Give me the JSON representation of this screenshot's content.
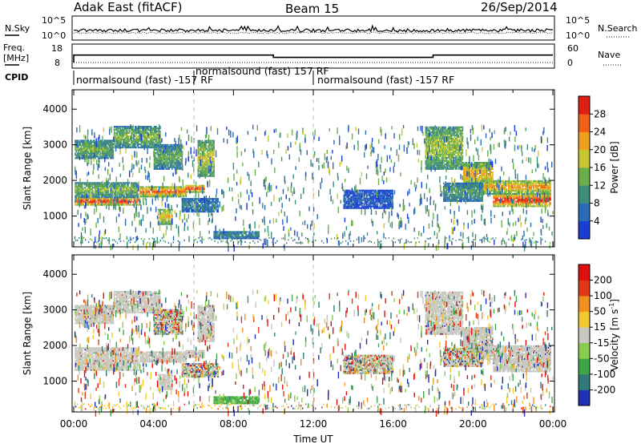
{
  "header": {
    "radar": "Adak East (fitACF)",
    "beam": "Beam 15",
    "date": "26/Sep/2014"
  },
  "ancillary": {
    "nsky_label": "N.Sky",
    "nsearch_label": "N.Search",
    "noise_ticks": [
      "10^5",
      "10^0"
    ],
    "freq_label": "Freq.",
    "freq_unit": "[MHz]",
    "freq_ticks": [
      "18",
      "8"
    ],
    "nave_label": "Nave",
    "nave_ticks": [
      "60",
      "0"
    ],
    "cpid_label": "CPID",
    "cpid_segments": [
      {
        "start_hour": 0,
        "end_hour": 6,
        "label": "normalsound (fast) -157 RF"
      },
      {
        "start_hour": 6,
        "end_hour": 12,
        "label": "normalsound (fast) 157 RF"
      },
      {
        "start_hour": 12,
        "end_hour": 24,
        "label": "normalsound (fast) -157 RF"
      }
    ],
    "freq_mhz": [
      {
        "start_hour": 0,
        "end_hour": 10,
        "value": 14.5
      },
      {
        "start_hour": 10,
        "end_hour": 18,
        "value": 13.2
      },
      {
        "start_hour": 18,
        "end_hour": 24,
        "value": 14.5
      }
    ]
  },
  "chart_data": [
    {
      "type": "heatmap",
      "panel": "power",
      "ylabel": "Slant Range [km]",
      "xlabel": "",
      "xlim_hours": [
        0,
        24
      ],
      "ylim": [
        180,
        4500
      ],
      "yticks": [
        1000,
        2000,
        3000,
        4000
      ],
      "colorbar_label": "Power [dB]",
      "colorbar_ticks": [
        "4",
        "8",
        "12",
        "16",
        "20",
        "24",
        "28"
      ],
      "colorbar_range": [
        0,
        30
      ],
      "colorbar_colors": [
        "#1a3dd6",
        "#2a6ab8",
        "#3e8e7a",
        "#6aae4a",
        "#c8c832",
        "#f0a020",
        "#f06018",
        "#e01e12"
      ]
    },
    {
      "type": "heatmap",
      "panel": "velocity",
      "ylabel": "Slant Range [km]",
      "xlabel": "Time UT",
      "xlim_hours": [
        0,
        24
      ],
      "ylim": [
        180,
        4500
      ],
      "yticks": [
        1000,
        2000,
        3000,
        4000
      ],
      "xticks": [
        "00:00",
        "04:00",
        "08:00",
        "12:00",
        "16:00",
        "20:00",
        "00:00"
      ],
      "colorbar_label": "Velocity [m s",
      "colorbar_label_sup": "-1",
      "colorbar_label_end": "]",
      "colorbar_ticks": [
        "200",
        "100",
        "50",
        "15",
        "-15",
        "-50",
        "-100",
        "-200"
      ],
      "colorbar_colors": [
        "#2030b0",
        "#2f7a78",
        "#3fa648",
        "#88cc50",
        "#c8c8c0",
        "#f0c830",
        "#f09020",
        "#e03818",
        "#e01010"
      ]
    }
  ]
}
